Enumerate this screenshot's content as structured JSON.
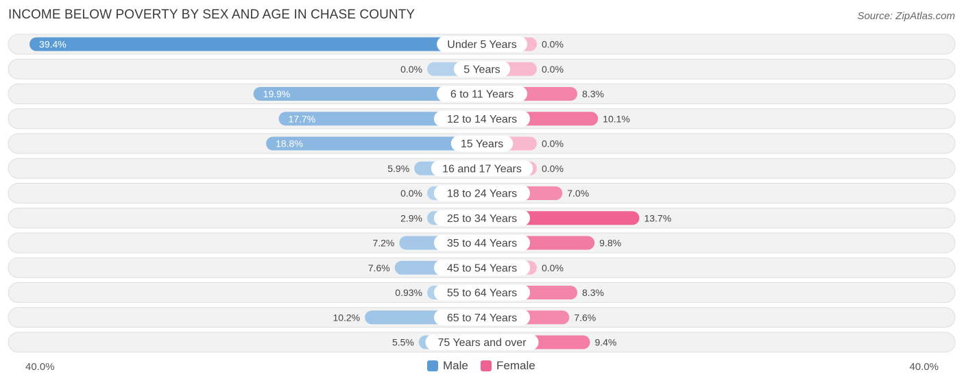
{
  "chart_data": {
    "type": "bar",
    "title": "INCOME BELOW POVERTY BY SEX AND AGE IN CHASE COUNTY",
    "source": "Source: ZipAtlas.com",
    "categories": [
      "Under 5 Years",
      "5 Years",
      "6 to 11 Years",
      "12 to 14 Years",
      "15 Years",
      "16 and 17 Years",
      "18 to 24 Years",
      "25 to 34 Years",
      "35 to 44 Years",
      "45 to 54 Years",
      "55 to 64 Years",
      "65 to 74 Years",
      "75 Years and over"
    ],
    "series": [
      {
        "name": "Male",
        "color": "#5b9bd5",
        "values": [
          39.4,
          0.0,
          19.9,
          17.7,
          18.8,
          5.9,
          0.0,
          2.9,
          7.2,
          7.6,
          0.93,
          10.2,
          5.5
        ],
        "labels": [
          "39.4%",
          "0.0%",
          "19.9%",
          "17.7%",
          "18.8%",
          "5.9%",
          "0.0%",
          "2.9%",
          "7.2%",
          "7.6%",
          "0.93%",
          "10.2%",
          "5.5%"
        ]
      },
      {
        "name": "Female",
        "color": "#f06292",
        "values": [
          0.0,
          0.0,
          8.3,
          10.1,
          0.0,
          0.0,
          7.0,
          13.7,
          9.8,
          0.0,
          8.3,
          7.6,
          9.4
        ],
        "labels": [
          "0.0%",
          "0.0%",
          "8.3%",
          "10.1%",
          "0.0%",
          "0.0%",
          "7.0%",
          "13.7%",
          "9.8%",
          "0.0%",
          "8.3%",
          "7.6%",
          "9.4%"
        ]
      }
    ],
    "xlim": [
      -40,
      40
    ],
    "axis_left_label": "40.0%",
    "axis_right_label": "40.0%",
    "legend_position": "bottom-center"
  }
}
